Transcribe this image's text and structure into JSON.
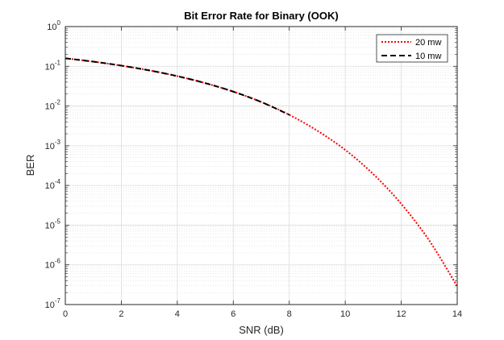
{
  "chart_data": {
    "type": "line",
    "title": "Bit Error Rate for Binary (OOK)",
    "xlabel": "SNR (dB)",
    "ylabel": "BER",
    "xlim": [
      0,
      14
    ],
    "ylim": [
      1e-07,
      1
    ],
    "yscale": "log",
    "grid": true,
    "minor_grid": true,
    "legend_position": "top-right",
    "x_ticks": [
      "0",
      "2",
      "4",
      "6",
      "8",
      "10",
      "12",
      "14"
    ],
    "y_ticks": [
      {
        "base": "10",
        "exp": "0"
      },
      {
        "base": "10",
        "exp": "-1"
      },
      {
        "base": "10",
        "exp": "-2"
      },
      {
        "base": "10",
        "exp": "-3"
      },
      {
        "base": "10",
        "exp": "-4"
      },
      {
        "base": "10",
        "exp": "-5"
      },
      {
        "base": "10",
        "exp": "-6"
      },
      {
        "base": "10",
        "exp": "-7"
      }
    ],
    "series": [
      {
        "name": "20 mw",
        "color": "#ff0000",
        "style": "dotted",
        "x": [
          0,
          1,
          2,
          3,
          4,
          5,
          6,
          7,
          8,
          9,
          10,
          11,
          12,
          13,
          14
        ],
        "y": [
          0.159,
          0.131,
          0.104,
          0.0789,
          0.0565,
          0.0377,
          0.023,
          0.0126,
          0.006,
          0.00239,
          0.000783,
          0.000193,
          3.43e-05,
          4.1e-06,
          2.9e-07
        ]
      },
      {
        "name": "10 mw",
        "color": "#000000",
        "style": "dashed",
        "x": [
          0,
          1,
          2,
          3,
          4,
          5,
          6,
          7,
          8
        ],
        "y": [
          0.159,
          0.131,
          0.104,
          0.0789,
          0.0565,
          0.0377,
          0.023,
          0.0126,
          0.006
        ]
      }
    ]
  }
}
